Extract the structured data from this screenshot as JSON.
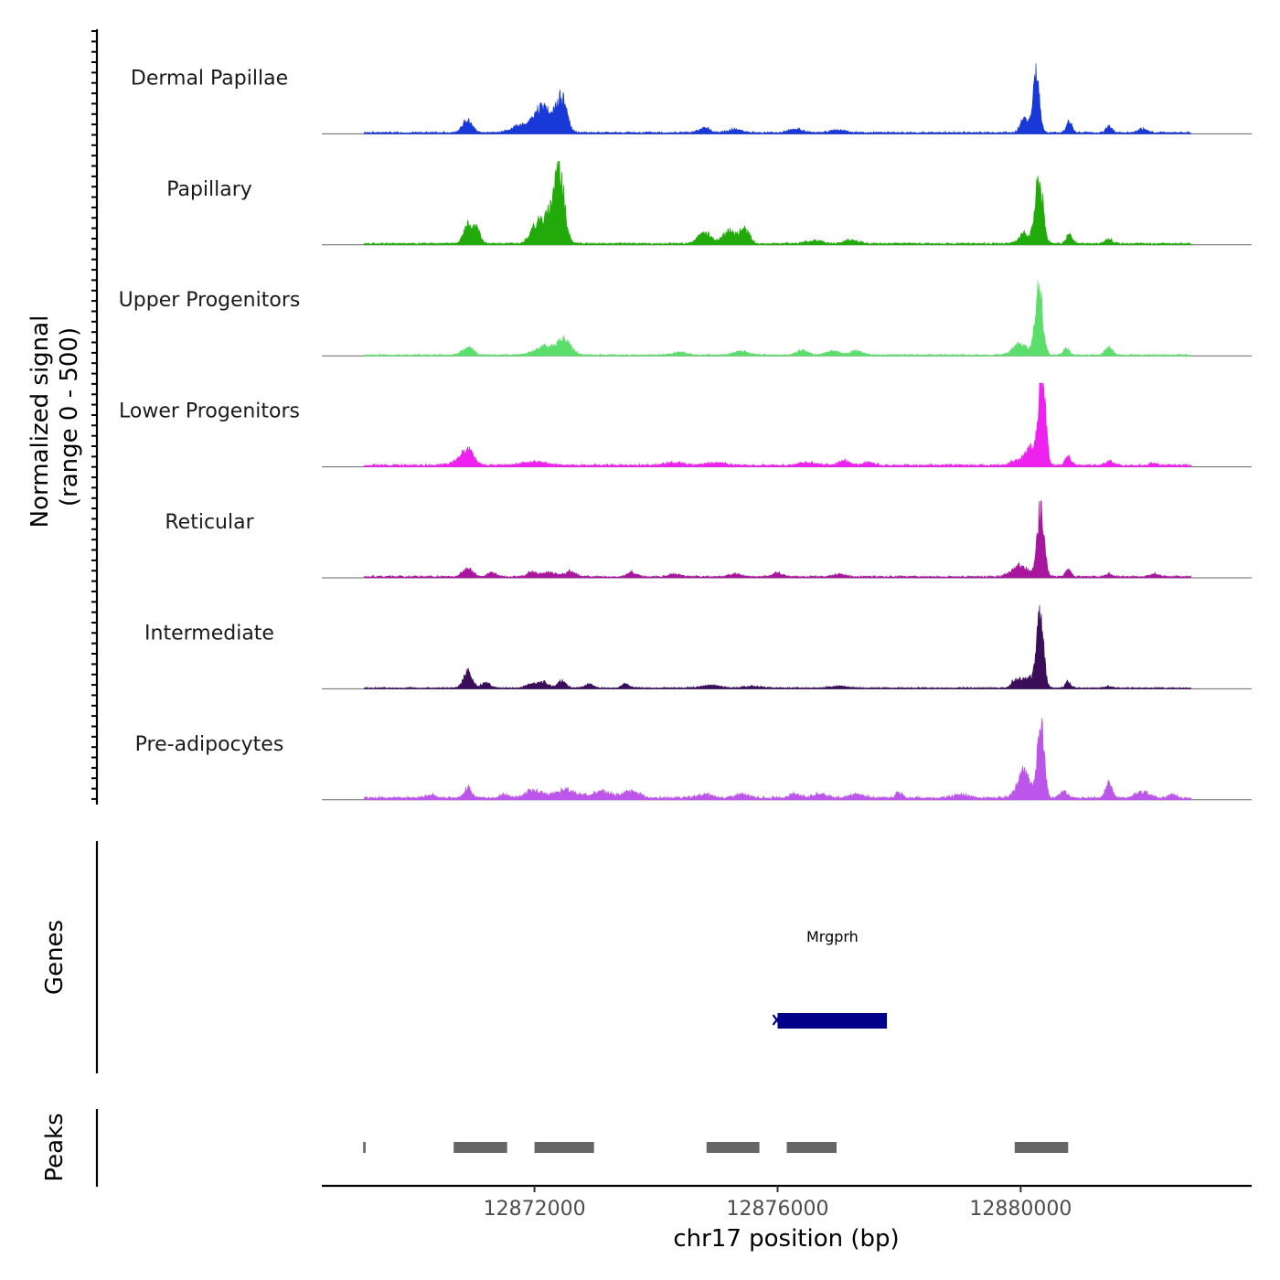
{
  "chart_data": {
    "type": "area",
    "title": "",
    "xlabel": "chr17 position (bp)",
    "ylabel": [
      "Normalized signal",
      "(range 0 - 500)"
    ],
    "xlim": [
      12868500,
      12883800
    ],
    "ylim": [
      0,
      500
    ],
    "x_ticks": [
      12872000,
      12876000,
      12880000
    ],
    "x_tick_labels": [
      "12872000",
      "12876000",
      "12880000"
    ],
    "region_start": 12869200,
    "region_end": 12882800,
    "tracks": [
      {
        "name": "Dermal Papillae",
        "color": "#1838d8",
        "peaks": [
          [
            12870900,
            28,
            80
          ],
          [
            12871800,
            18,
            150
          ],
          [
            12872100,
            28,
            110
          ],
          [
            12872450,
            75,
            80
          ],
          [
            12872200,
            35,
            150
          ],
          [
            12874800,
            10,
            90
          ],
          [
            12875300,
            8,
            110
          ],
          [
            12876300,
            8,
            120
          ],
          [
            12877000,
            6,
            120
          ],
          [
            12880050,
            30,
            60
          ],
          [
            12880250,
            140,
            55
          ],
          [
            12880800,
            25,
            45
          ],
          [
            12881450,
            14,
            50
          ],
          [
            12882000,
            8,
            80
          ]
        ],
        "base": 4
      },
      {
        "name": "Papillary",
        "color": "#22aa0a",
        "peaks": [
          [
            12870900,
            45,
            70
          ],
          [
            12871050,
            30,
            60
          ],
          [
            12872000,
            30,
            90
          ],
          [
            12872400,
            170,
            85
          ],
          [
            12872200,
            55,
            120
          ],
          [
            12874800,
            25,
            110
          ],
          [
            12875200,
            30,
            100
          ],
          [
            12875450,
            35,
            80
          ],
          [
            12876600,
            8,
            120
          ],
          [
            12877200,
            8,
            120
          ],
          [
            12880050,
            25,
            80
          ],
          [
            12880300,
            150,
            65
          ],
          [
            12880800,
            20,
            50
          ],
          [
            12881450,
            10,
            60
          ]
        ],
        "base": 4
      },
      {
        "name": "Upper Progenitors",
        "color": "#5bde6b",
        "peaks": [
          [
            12870900,
            18,
            90
          ],
          [
            12872200,
            20,
            180
          ],
          [
            12872500,
            30,
            110
          ],
          [
            12874400,
            6,
            120
          ],
          [
            12875400,
            8,
            120
          ],
          [
            12876400,
            10,
            90
          ],
          [
            12876900,
            10,
            110
          ],
          [
            12877300,
            10,
            90
          ],
          [
            12880000,
            25,
            120
          ],
          [
            12880300,
            150,
            60
          ],
          [
            12880750,
            15,
            50
          ],
          [
            12881450,
            16,
            60
          ]
        ],
        "base": 3
      },
      {
        "name": "Lower Progenitors",
        "color": "#ee22ee",
        "peaks": [
          [
            12870900,
            30,
            90
          ],
          [
            12870800,
            10,
            160
          ],
          [
            12872000,
            8,
            200
          ],
          [
            12874300,
            6,
            150
          ],
          [
            12875000,
            6,
            150
          ],
          [
            12876500,
            6,
            150
          ],
          [
            12877100,
            10,
            100
          ],
          [
            12877500,
            6,
            100
          ],
          [
            12879900,
            10,
            70
          ],
          [
            12880150,
            40,
            90
          ],
          [
            12880350,
            230,
            55
          ],
          [
            12880780,
            20,
            45
          ],
          [
            12881450,
            8,
            60
          ],
          [
            12882200,
            6,
            60
          ]
        ],
        "base": 5
      },
      {
        "name": "Reticular",
        "color": "#a8169e",
        "peaks": [
          [
            12870900,
            20,
            80
          ],
          [
            12871300,
            8,
            70
          ],
          [
            12871950,
            10,
            80
          ],
          [
            12872250,
            10,
            120
          ],
          [
            12872600,
            12,
            80
          ],
          [
            12873600,
            10,
            70
          ],
          [
            12874300,
            6,
            80
          ],
          [
            12875300,
            6,
            90
          ],
          [
            12876000,
            8,
            80
          ],
          [
            12877000,
            6,
            90
          ],
          [
            12880000,
            25,
            140
          ],
          [
            12880330,
            160,
            55
          ],
          [
            12880780,
            15,
            45
          ],
          [
            12881450,
            6,
            60
          ],
          [
            12882200,
            6,
            80
          ]
        ],
        "base": 4
      },
      {
        "name": "Intermediate",
        "color": "#3b0e5a",
        "peaks": [
          [
            12870900,
            38,
            70
          ],
          [
            12871200,
            12,
            70
          ],
          [
            12871950,
            10,
            80
          ],
          [
            12872150,
            14,
            80
          ],
          [
            12872450,
            16,
            70
          ],
          [
            12872900,
            8,
            70
          ],
          [
            12873500,
            10,
            60
          ],
          [
            12874900,
            6,
            150
          ],
          [
            12875600,
            4,
            150
          ],
          [
            12877000,
            4,
            150
          ],
          [
            12879900,
            14,
            60
          ],
          [
            12880100,
            25,
            120
          ],
          [
            12880320,
            170,
            55
          ],
          [
            12880780,
            14,
            45
          ],
          [
            12881450,
            4,
            60
          ]
        ],
        "base": 3
      },
      {
        "name": "Pre-adipocytes",
        "color": "#bc55ea",
        "peaks": [
          [
            12870300,
            8,
            80
          ],
          [
            12870900,
            25,
            60
          ],
          [
            12871500,
            8,
            70
          ],
          [
            12872000,
            18,
            150
          ],
          [
            12872500,
            18,
            150
          ],
          [
            12873100,
            14,
            200
          ],
          [
            12873600,
            16,
            120
          ],
          [
            12874800,
            8,
            120
          ],
          [
            12875400,
            8,
            120
          ],
          [
            12876300,
            10,
            90
          ],
          [
            12876700,
            10,
            120
          ],
          [
            12877300,
            8,
            120
          ],
          [
            12878000,
            12,
            60
          ],
          [
            12879000,
            8,
            120
          ],
          [
            12880050,
            60,
            100
          ],
          [
            12880330,
            170,
            55
          ],
          [
            12880700,
            16,
            60
          ],
          [
            12881450,
            34,
            55
          ],
          [
            12882000,
            14,
            120
          ],
          [
            12882500,
            8,
            60
          ]
        ],
        "base": 6
      }
    ],
    "genes": [
      {
        "name": "Mrgprh",
        "start": 12876000,
        "end": 12877800,
        "strand": "-",
        "color": "#00008b"
      }
    ],
    "peaks_track": {
      "label": "Peaks",
      "color": "#666666",
      "regions": [
        [
          12869180,
          12869220
        ],
        [
          12870670,
          12871550
        ],
        [
          12872000,
          12872980
        ],
        [
          12874830,
          12875700
        ],
        [
          12876150,
          12876970
        ],
        [
          12879900,
          12880780
        ]
      ]
    },
    "panel_labels": {
      "genes": "Genes",
      "peaks": "Peaks"
    }
  }
}
